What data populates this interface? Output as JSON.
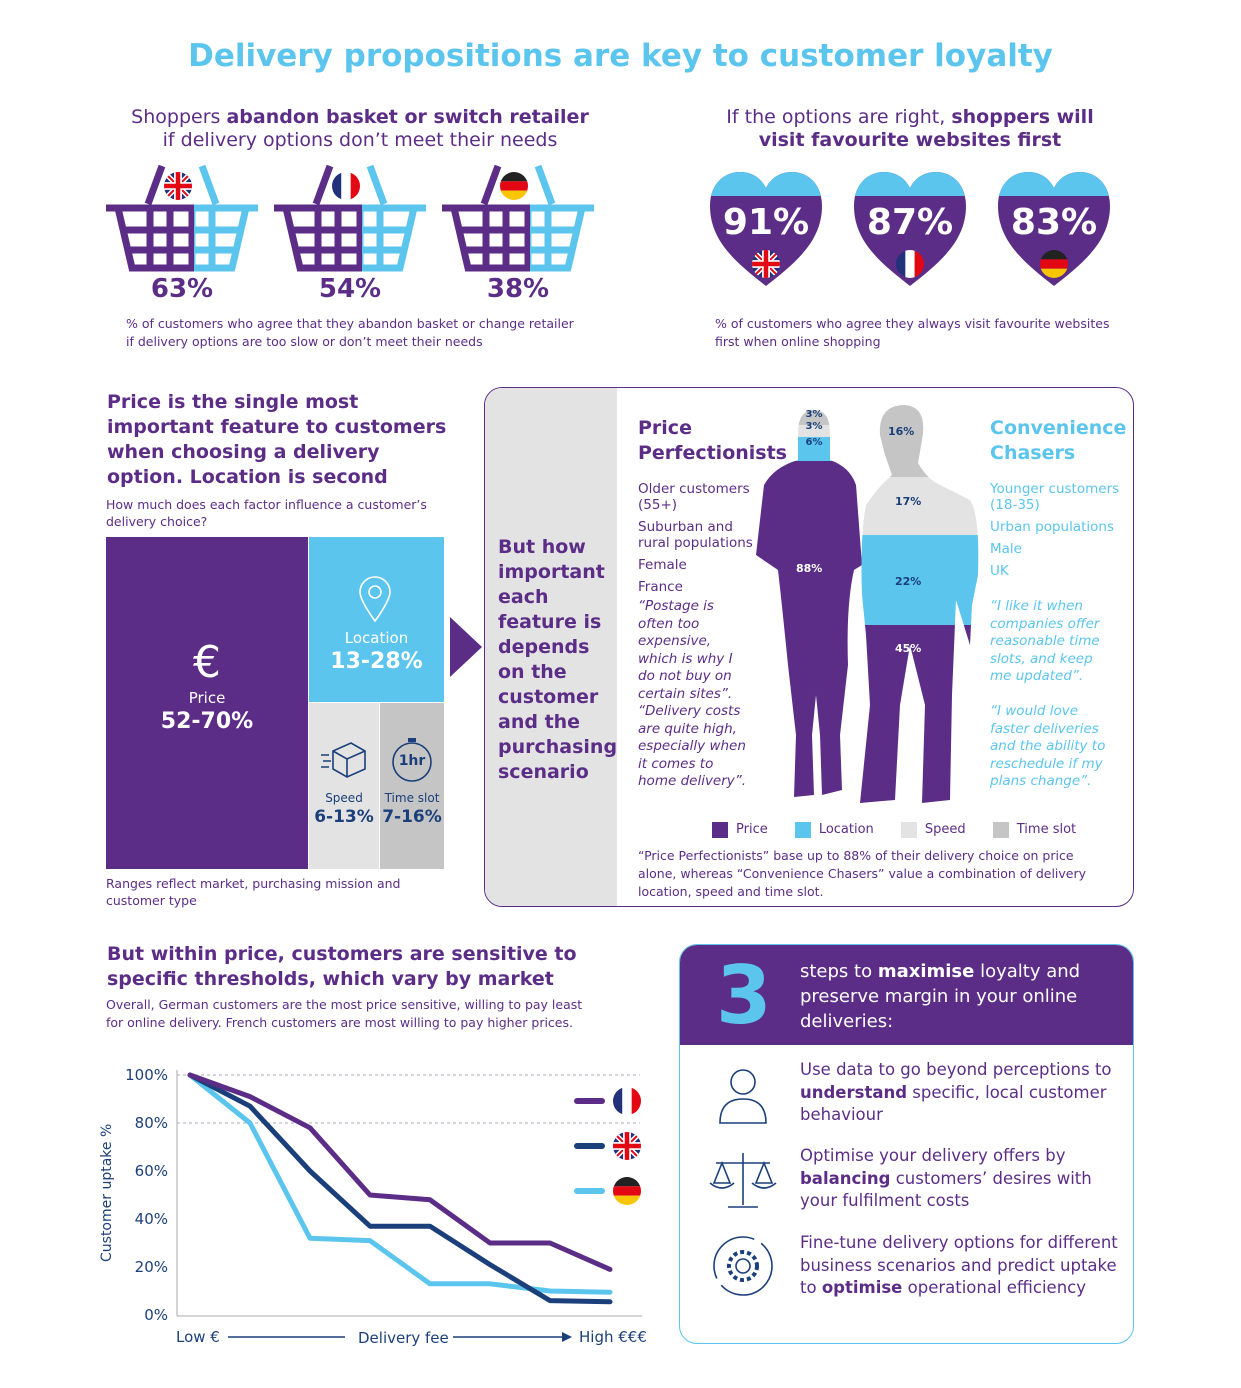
{
  "title": "Delivery propositions are key to customer loyalty",
  "colors": {
    "purple": "#5c2d87",
    "blue": "#5bc5ed",
    "navy": "#1b3f7a",
    "light_grey": "#e3e3e3",
    "grey": "#c5c5c5"
  },
  "abandon": {
    "heading_pre": "Shoppers ",
    "heading_bold": "abandon basket or switch retailer",
    "heading_line2": "if delivery options don’t meet their needs",
    "items": [
      {
        "flag": "uk-flag",
        "value": "63%"
      },
      {
        "flag": "france-flag",
        "value": "54%"
      },
      {
        "flag": "germany-flag",
        "value": "38%"
      }
    ],
    "caption": "% of customers who agree that they abandon basket or change retailer if delivery options are too slow or don’t meet their needs"
  },
  "loyalty": {
    "heading_pre": "If the options are right, ",
    "heading_bold": "shoppers will",
    "heading_line2": "visit favourite websites first",
    "items": [
      {
        "flag": "uk-flag",
        "value": "91%"
      },
      {
        "flag": "france-flag",
        "value": "87%"
      },
      {
        "flag": "germany-flag",
        "value": "83%"
      }
    ],
    "caption": "% of customers who agree they always visit favourite websites first when online shopping"
  },
  "factors": {
    "heading": "Price is the single most important feature to customers when choosing a delivery option. Location is second",
    "question": "How much does each factor influence a customer’s delivery choice?",
    "price": {
      "label": "Price",
      "range": "52-70%",
      "icon": "euro-icon"
    },
    "location": {
      "label": "Location",
      "range": "13-28%",
      "icon": "location-pin-icon"
    },
    "speed": {
      "label": "Speed",
      "range": "6-13%",
      "icon": "parcel-icon"
    },
    "time_slot": {
      "label": "Time slot",
      "range": "7-16%",
      "icon": "stopwatch-icon",
      "icon_text": "1hr"
    },
    "note": "Ranges reflect market, purchasing mission and customer type"
  },
  "segments": {
    "side_text": "But how important each feature is depends on the customer and the purchasing scenario",
    "price_perfectionists": {
      "title_line1": "Price",
      "title_line2": "Perfectionists",
      "traits": [
        "Older customers (55+)",
        "Suburban and rural populations",
        "Female",
        "France"
      ],
      "quotes": [
        "“Postage is often too expensive, which is why I do not buy on certain sites”.",
        "“Delivery costs are quite high, especially when it comes to home delivery”."
      ],
      "shares": {
        "time_slot": "3%",
        "speed": "3%",
        "location": "6%",
        "price": "88%"
      }
    },
    "convenience_chasers": {
      "title_line1": "Convenience",
      "title_line2": "Chasers",
      "traits": [
        "Younger customers (18-35)",
        "Urban populations",
        "Male",
        "UK"
      ],
      "quotes": [
        "“I like it when companies offer reasonable time slots, and keep me updated”.",
        "“I would love faster deliveries and the ability to reschedule if my plans change”."
      ],
      "shares": {
        "time_slot": "16%",
        "speed": "17%",
        "location": "22%",
        "price": "45%"
      }
    },
    "legend": [
      "Price",
      "Location",
      "Speed",
      "Time slot"
    ],
    "footnote": "“Price Perfectionists” base up to 88% of their delivery choice on price alone, whereas “Convenience Chasers” value a combination of delivery location, speed and time slot."
  },
  "thresholds": {
    "heading": "But within price, customers are sensitive to specific thresholds, which vary by market",
    "sub": "Overall, German customers are the most price sensitive, willing to pay least for online delivery. French customers are most willing to pay higher prices."
  },
  "chart_data": {
    "type": "line",
    "xlabel": "Delivery fee",
    "x_low_label": "Low €",
    "x_high_label": "High €€€",
    "ylabel": "Customer uptake %",
    "ylim": [
      0,
      100
    ],
    "yticks": [
      "0%",
      "20%",
      "40%",
      "60%",
      "80%",
      "100%"
    ],
    "x": [
      1,
      2,
      3,
      4,
      5,
      6,
      7,
      8
    ],
    "grid": "dashed at 80% and 100%",
    "legend_placement": "top-right (flag icons)",
    "series": [
      {
        "flag": "france-flag",
        "color": "#5c2d87",
        "values": [
          100,
          91,
          78,
          50,
          48,
          30,
          30,
          19
        ]
      },
      {
        "flag": "uk-flag",
        "color": "#1b3f7a",
        "values": [
          100,
          87,
          60,
          37,
          37,
          21,
          6,
          5.5
        ]
      },
      {
        "flag": "germany-flag",
        "color": "#5bc5ed",
        "values": [
          100,
          80,
          32,
          31,
          13,
          13,
          10,
          9.5
        ]
      }
    ]
  },
  "steps": {
    "number": "3",
    "head_pre": "steps to ",
    "head_bold": "maximise",
    "head_post": " loyalty and preserve margin in your online deliveries:",
    "items": [
      {
        "icon": "person-icon",
        "pre": "Use data to go beyond perceptions to ",
        "bold": "understand",
        "post": " specific, local customer behaviour"
      },
      {
        "icon": "scales-icon",
        "pre": "Optimise your delivery offers by ",
        "bold": "balancing",
        "post": " customers’ desires with your fulfilment costs"
      },
      {
        "icon": "gear-cycle-icon",
        "pre": "Fine-tune delivery options for different business scenarios and predict uptake to ",
        "bold": "optimise",
        "post": " operational efficiency"
      }
    ]
  }
}
